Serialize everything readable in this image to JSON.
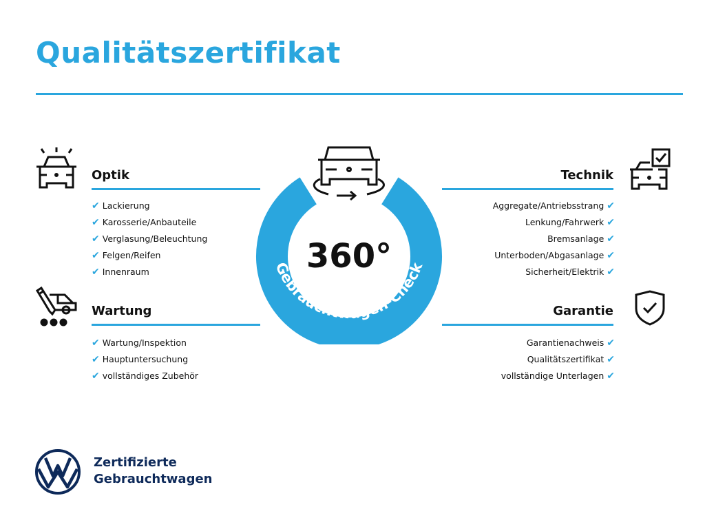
{
  "title": "Qualitätszertifikat",
  "accent_color": "#2aa6de",
  "center": {
    "icon": "car-rotate-icon",
    "degrees": "360°",
    "ring_text": "Gebrauchtwagen-Check"
  },
  "sections": {
    "optik": {
      "title": "Optik",
      "icon": "car-lights-icon",
      "items": [
        "Lackierung",
        "Karosserie/Anbauteile",
        "Verglasung/Beleuchtung",
        "Felgen/Reifen",
        "Innenraum"
      ]
    },
    "wartung": {
      "title": "Wartung",
      "icon": "service-truck-icon",
      "items": [
        "Wartung/Inspektion",
        "Hauptuntersuchung",
        "vollständiges Zubehör"
      ]
    },
    "technik": {
      "title": "Technik",
      "icon": "car-checklist-icon",
      "items": [
        "Aggregate/Antriebsstrang",
        "Lenkung/Fahrwerk",
        "Bremsanlage",
        "Unterboden/Abgasanlage",
        "Sicherheit/Elektrik"
      ]
    },
    "garantie": {
      "title": "Garantie",
      "icon": "shield-check-icon",
      "items": [
        "Garantienachweis",
        "Qualitätszertifikat",
        "vollständige Unterlagen"
      ]
    }
  },
  "check_mark": "✔",
  "brand": {
    "logo": "vw-logo",
    "line1": "Zertifizierte",
    "line2": "Gebrauchtwagen"
  }
}
